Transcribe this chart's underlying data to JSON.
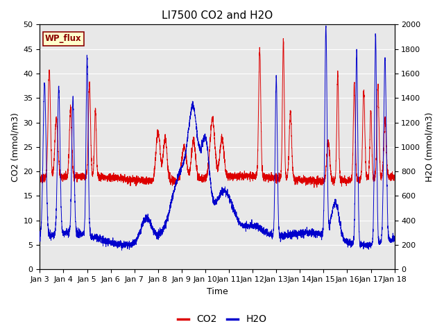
{
  "title": "LI7500 CO2 and H2O",
  "xlabel": "Time",
  "ylabel_left": "CO2 (mmol/m3)",
  "ylabel_right": "H2O (mmol/m3)",
  "co2_ylim": [
    0,
    50
  ],
  "h2o_ylim": [
    0,
    2000
  ],
  "co2_color": "#dd0000",
  "h2o_color": "#0000cc",
  "fig_bg_color": "#ffffff",
  "plot_bg_color": "#e8e8e8",
  "grid_color": "#ffffff",
  "annotation_text": "WP_flux",
  "annotation_color": "#8b0000",
  "annotation_bg": "#ffffcc",
  "annotation_border": "#8b0000",
  "x_tick_labels": [
    "Jan 3",
    "Jan 4",
    "Jan 5",
    "Jan 6",
    "Jan 7",
    "Jan 8",
    "Jan 9",
    "Jan 10",
    "Jan 11",
    "Jan 12",
    "Jan 13",
    "Jan 14",
    "Jan 15",
    "Jan 16",
    "Jan 17",
    "Jan 18"
  ],
  "title_fontsize": 11,
  "label_fontsize": 9,
  "tick_fontsize": 8,
  "legend_co2": "CO2",
  "legend_h2o": "H2O",
  "legend_fontsize": 10
}
